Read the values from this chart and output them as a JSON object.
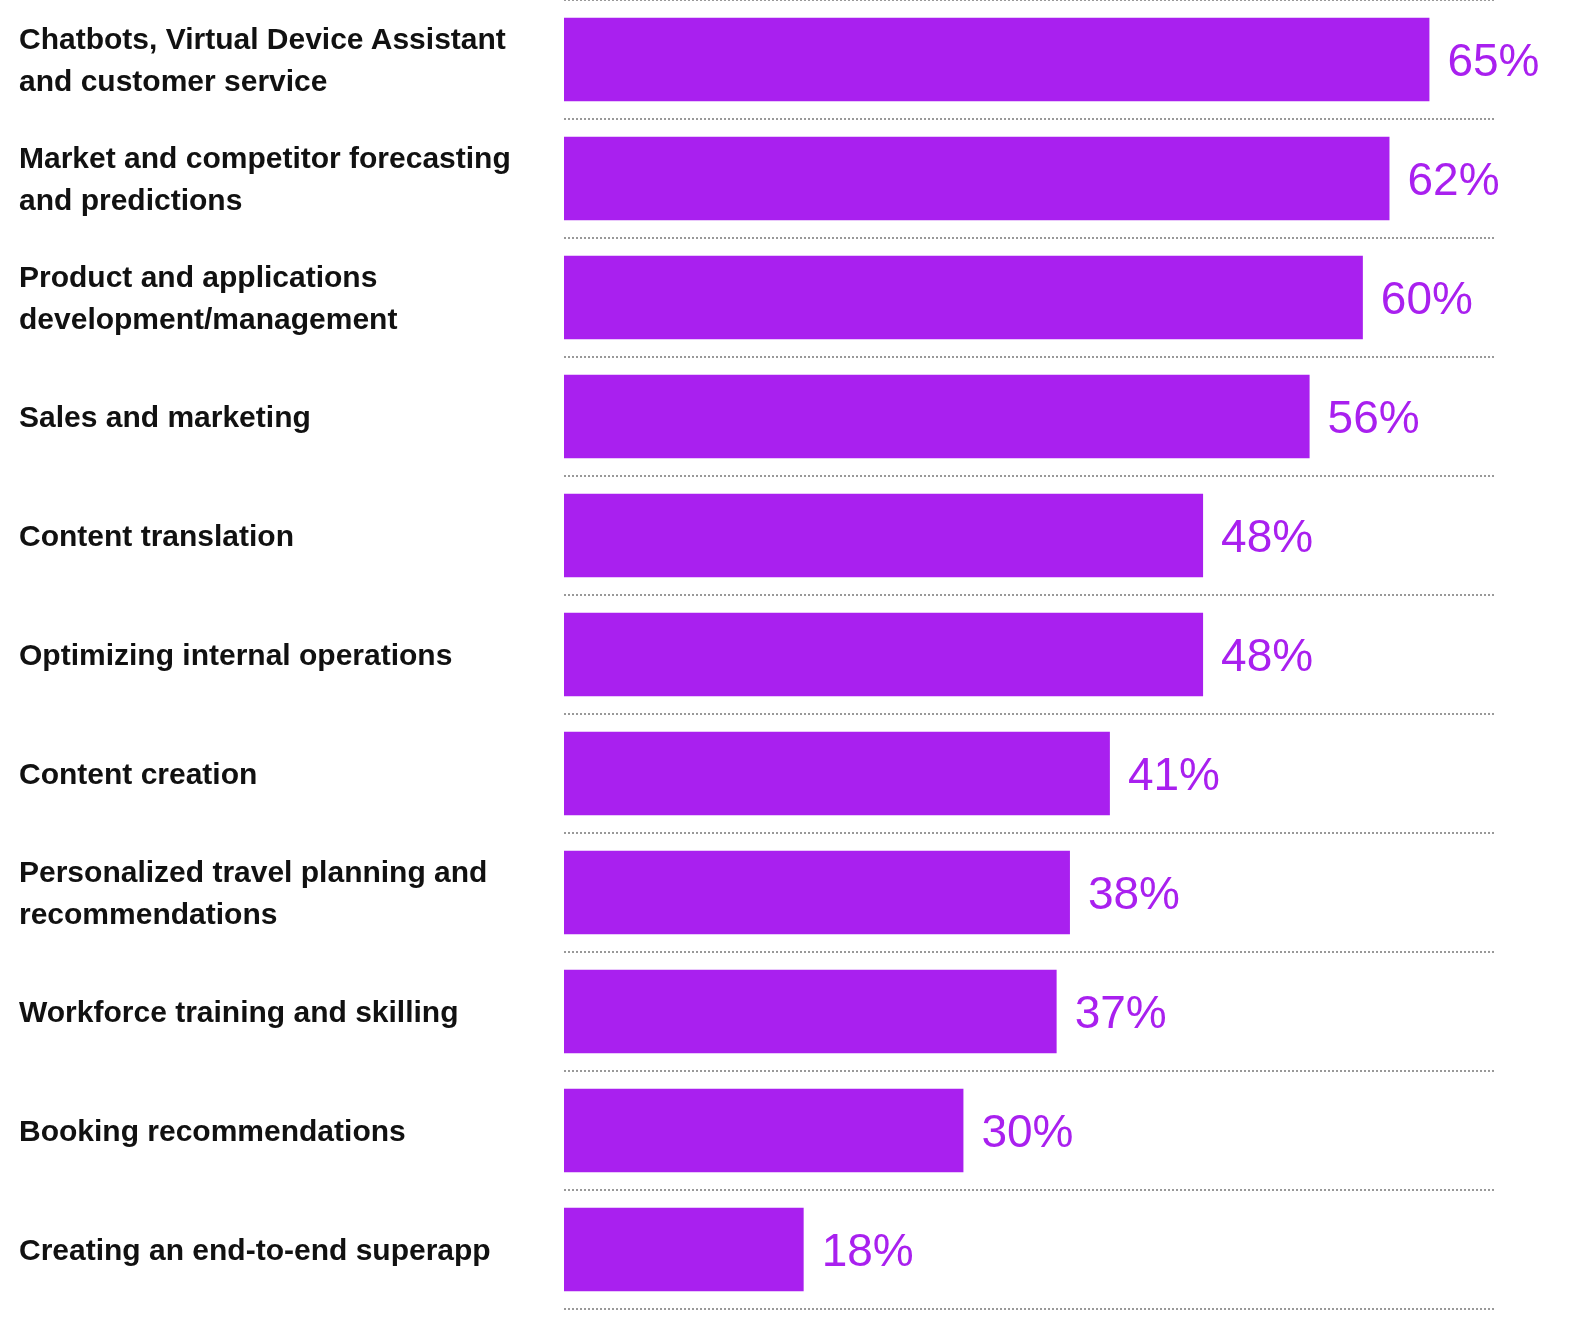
{
  "chart_data": {
    "type": "bar",
    "orientation": "horizontal",
    "categories": [
      "Chatbots, Virtual Device Assistant and customer service",
      "Market and competitor forecasting and predictions",
      "Product and applications development/management",
      "Sales and marketing",
      "Content translation",
      "Optimizing internal operations",
      "Content creation",
      "Personalized travel planning and recommendations",
      "Workforce training and skilling",
      "Booking recommendations",
      "Creating an end-to-end superapp"
    ],
    "values": [
      65,
      62,
      60,
      56,
      48,
      48,
      41,
      38,
      37,
      30,
      18
    ],
    "value_labels": [
      "65%",
      "62%",
      "60%",
      "56%",
      "48%",
      "48%",
      "41%",
      "38%",
      "37%",
      "30%",
      "18%"
    ],
    "color": "#a920ef",
    "grid": "y"
  }
}
